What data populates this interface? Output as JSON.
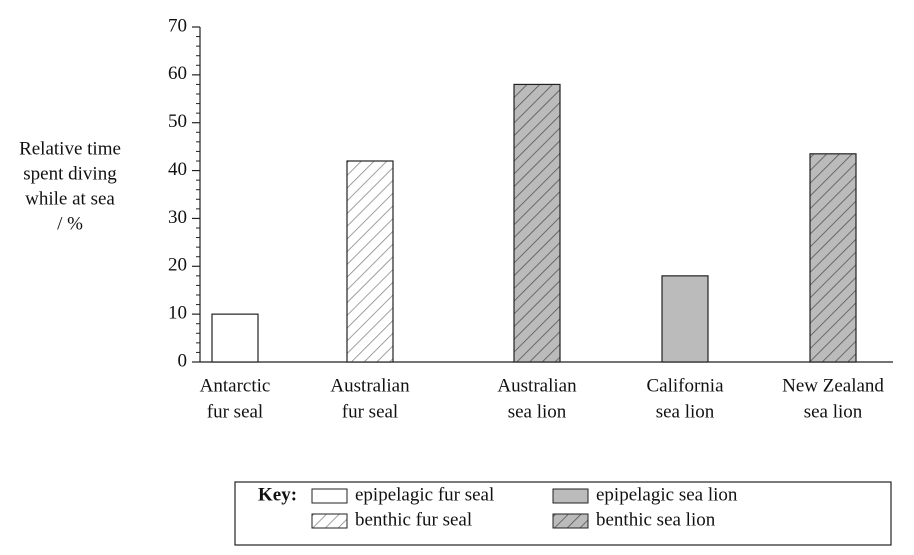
{
  "chart_data": {
    "type": "bar",
    "ylabel": [
      "Relative time",
      "spent diving",
      "while at sea",
      "/ %"
    ],
    "categories": [
      [
        "Antarctic",
        "fur seal"
      ],
      [
        "Australian",
        "fur seal"
      ],
      [
        "Australian",
        "sea lion"
      ],
      [
        "California",
        "sea lion"
      ],
      [
        "New Zealand",
        "sea lion"
      ]
    ],
    "series": [
      {
        "name": "epipelagic fur seal",
        "color": "#ffffff",
        "pattern": null,
        "values": [
          10,
          null,
          null,
          null,
          null
        ]
      },
      {
        "name": "benthic fur seal",
        "color": "#ffffff",
        "pattern": "hatch",
        "values": [
          null,
          42,
          null,
          null,
          null
        ]
      },
      {
        "name": "epipelagic sea lion",
        "color": "#bbbbbb",
        "pattern": null,
        "values": [
          null,
          null,
          null,
          18,
          null
        ]
      },
      {
        "name": "benthic sea lion",
        "color": "#bbbbbb",
        "pattern": "hatch",
        "values": [
          null,
          null,
          58,
          null,
          43.5
        ]
      }
    ],
    "ylim": [
      0,
      70
    ],
    "yticks": [
      0,
      10,
      20,
      30,
      40,
      50,
      60,
      70
    ],
    "yminorticks": [
      2,
      4,
      6,
      8,
      12,
      14,
      16,
      18,
      22,
      24,
      26,
      28,
      32,
      34,
      36,
      38,
      42,
      44,
      46,
      48,
      52,
      54,
      56,
      58,
      62,
      64,
      66,
      68
    ],
    "legend_title": "Key:"
  }
}
